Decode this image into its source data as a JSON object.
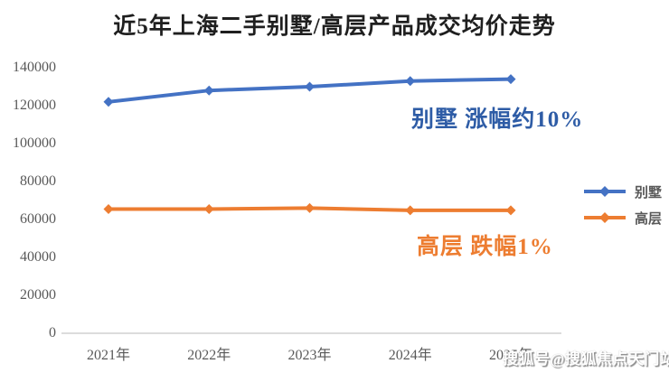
{
  "title": "近5年上海二手别墅/高层产品成交均价走势",
  "watermark": "搜狐号@搜狐焦点天门站",
  "annotations": {
    "villa": "别墅 涨幅约10%",
    "highrise": "高层 跌幅1%"
  },
  "colors": {
    "villa_line": "#4472C4",
    "highrise_line": "#ED7D31",
    "villa_annotation": "#2E5CA6",
    "highrise_annotation": "#ED7D31",
    "axis_line": "#DCDCDC",
    "axis_text": "#595959",
    "title_text": "#1F1F1F"
  },
  "chart_data": {
    "type": "line",
    "title": "近5年上海二手别墅/高层产品成交均价走势",
    "categories": [
      "2021年",
      "2022年",
      "2023年",
      "2024年",
      "2025年"
    ],
    "series": [
      {
        "name": "别墅",
        "color": "#4472C4",
        "marker": "diamond",
        "values": [
          122000,
          128000,
          130000,
          133000,
          134000
        ]
      },
      {
        "name": "高层",
        "color": "#ED7D31",
        "marker": "diamond",
        "values": [
          65500,
          65500,
          66000,
          64800,
          64800
        ]
      }
    ],
    "ylim": [
      0,
      140000
    ],
    "yticks": [
      0,
      20000,
      40000,
      60000,
      80000,
      100000,
      120000,
      140000
    ],
    "grid": false,
    "legend_position": "right"
  }
}
